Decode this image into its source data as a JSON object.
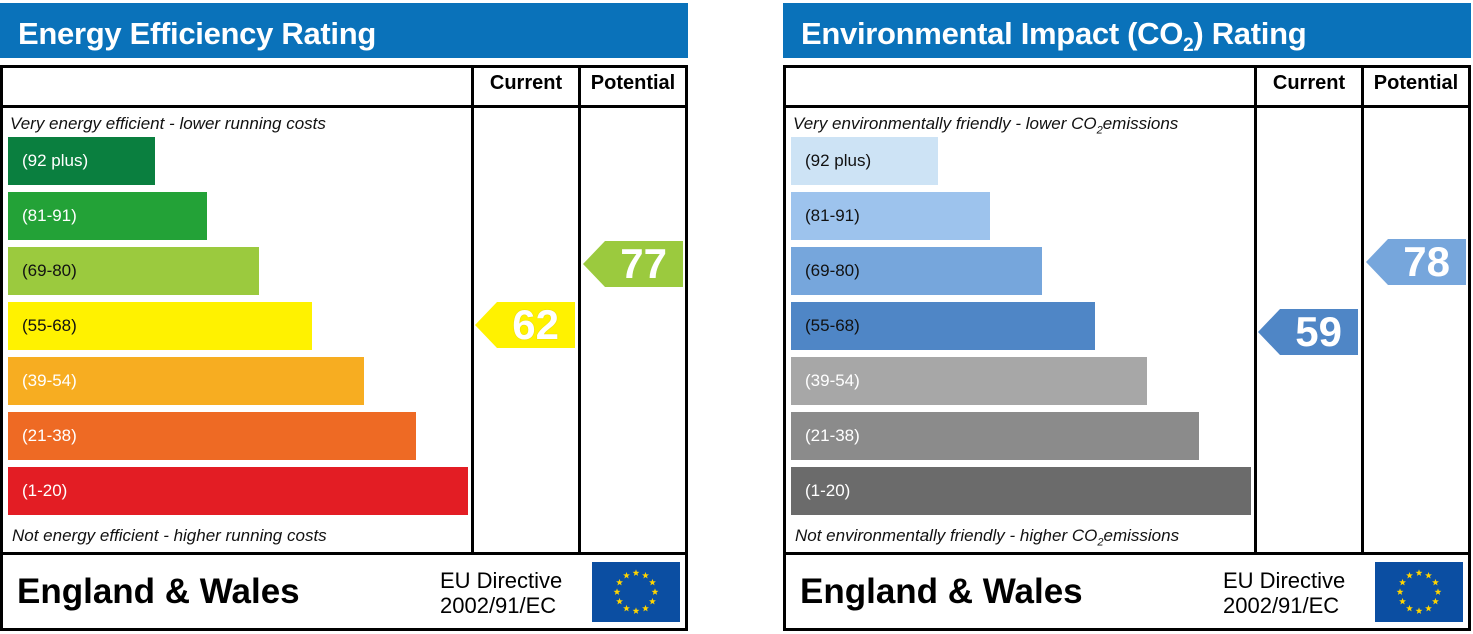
{
  "colors": {
    "header_blue": "#0a72ba",
    "ee_bands": [
      "#0a7f3f",
      "#23a237",
      "#9bca3e",
      "#fff200",
      "#f7ad21",
      "#ee6a24",
      "#e31d24"
    ],
    "ei_bands": [
      "#cde3f5",
      "#9dc3ed",
      "#76a6dc",
      "#4f86c6",
      "#a7a7a7",
      "#8b8b8b",
      "#6b6b6b"
    ],
    "eu_flag": "#0b4ea2",
    "eu_star": "#ffd400"
  },
  "energy_efficiency": {
    "title": "Energy Efficiency Rating",
    "col_current": "Current",
    "col_potential": "Potential",
    "top_caption": "Very energy efficient - lower running costs",
    "bottom_caption": "Not energy efficient - higher running costs",
    "footer_name": "England & Wales",
    "eu_line1": "EU Directive",
    "eu_line2": "2002/91/EC",
    "flag_icon": "eu-flag-icon"
  },
  "environmental_impact": {
    "title_prefix": "Environmental Impact (CO",
    "title_sub": "2",
    "title_suffix": ") Rating",
    "col_current": "Current",
    "col_potential": "Potential",
    "top_caption_prefix": "Very environmentally friendly - lower CO",
    "top_caption_sub": "2",
    "top_caption_suffix": "emissions",
    "bottom_caption_prefix": "Not environmentally friendly - higher CO",
    "bottom_caption_sub": "2",
    "bottom_caption_suffix": "emissions",
    "footer_name": "England & Wales",
    "eu_line1": "EU Directive",
    "eu_line2": "2002/91/EC",
    "flag_icon": "eu-flag-icon"
  },
  "chart_data": [
    {
      "type": "bar",
      "title": "Energy Efficiency Rating",
      "categories": [
        "(92 plus)",
        "(81-91)",
        "(69-80)",
        "(55-68)",
        "(39-54)",
        "(21-38)",
        "(1-20)"
      ],
      "scale": [
        1,
        100
      ],
      "current": 62,
      "potential": 77
    },
    {
      "type": "bar",
      "title": "Environmental Impact (CO2) Rating",
      "categories": [
        "(92 plus)",
        "(81-91)",
        "(69-80)",
        "(55-68)",
        "(39-54)",
        "(21-38)",
        "(1-20)"
      ],
      "scale": [
        1,
        100
      ],
      "current": 59,
      "potential": 78
    }
  ]
}
